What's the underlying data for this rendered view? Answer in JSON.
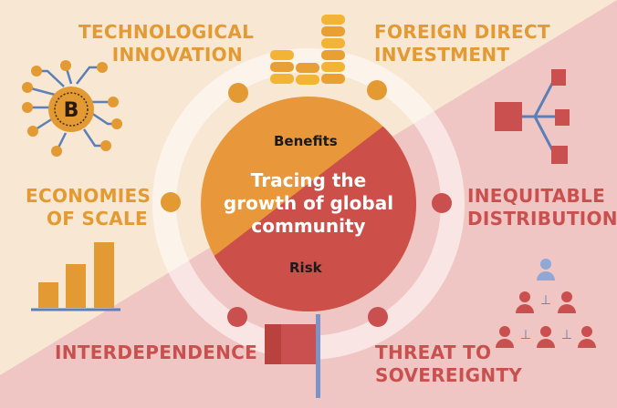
{
  "center": {
    "title_lines": [
      "Tracing the",
      "growth of global",
      "community"
    ],
    "top_label": "Benefits",
    "bottom_label": "Risk"
  },
  "benefits": {
    "technological_innovation": [
      "TECHNOLOGICAL",
      "INNOVATION"
    ],
    "foreign_direct_investment": [
      "FOREIGN DIRECT",
      "INVESTMENT"
    ],
    "economies_of_scale": [
      "ECONOMIES",
      "OF SCALE"
    ]
  },
  "risks": {
    "inequitable_distribution": [
      "INEQUITABLE",
      "DISTRIBUTION"
    ],
    "interdependence": [
      "INTERDEPENDENCE"
    ],
    "threat_to_sovereignty": [
      "THREAT TO",
      "SOVEREIGNTY"
    ]
  },
  "icon_glyphs": {
    "bitcoin": "B",
    "hierarchy_connector": "⊥"
  },
  "colors": {
    "benefit": "#e49a32",
    "risk": "#c9504e",
    "background_top": "#f8e7d2",
    "background_bottom": "#efc6c4"
  }
}
